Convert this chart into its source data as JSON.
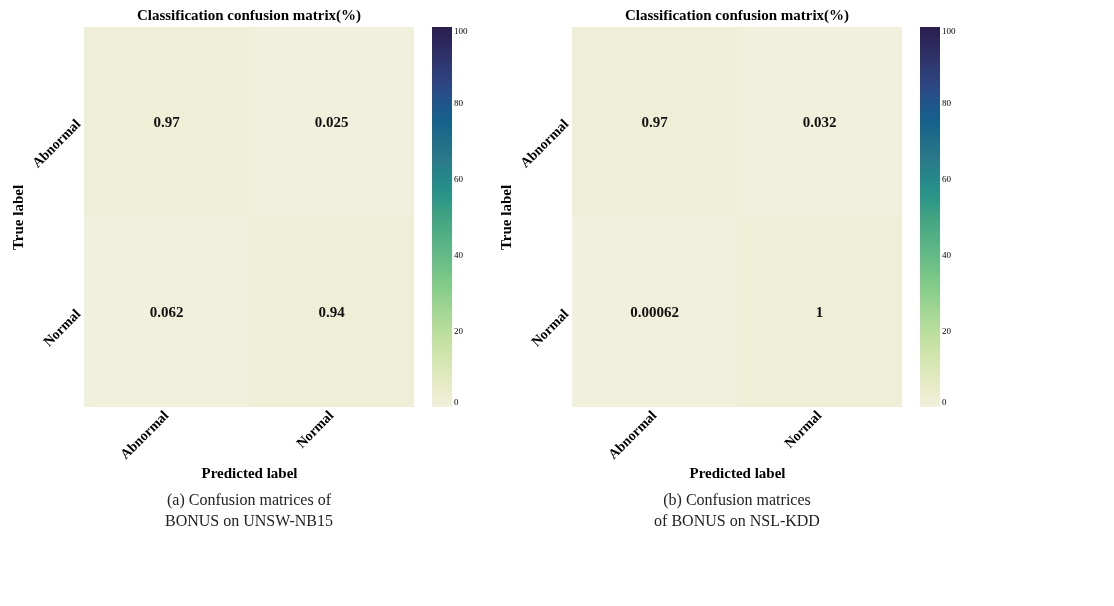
{
  "chart_data": [
    {
      "type": "heatmap",
      "title": "Classification confusion matrix(%)",
      "xlabel": "Predicted label",
      "ylabel": "True label",
      "categories": [
        "Abnormal",
        "Normal"
      ],
      "y_categories": [
        "Abnormal",
        "Normal"
      ],
      "cells": [
        [
          0.97,
          0.025
        ],
        [
          0.062,
          0.94
        ]
      ],
      "clim": [
        0,
        100
      ],
      "cticks": [
        0,
        20,
        40,
        60,
        80,
        100
      ],
      "data_labels": true,
      "annotations": [
        "(a) Confusion matrices of",
        "BONUS on UNSW-NB15"
      ]
    },
    {
      "type": "heatmap",
      "title": "Classification confusion matrix(%)",
      "xlabel": "Predicted label",
      "ylabel": "True label",
      "categories": [
        "Abnormal",
        "Normal"
      ],
      "y_categories": [
        "Abnormal",
        "Normal"
      ],
      "cells": [
        [
          0.97,
          0.032
        ],
        [
          0.00062,
          1
        ]
      ],
      "clim": [
        0,
        100
      ],
      "cticks": [
        0,
        20,
        40,
        60,
        80,
        100
      ],
      "data_labels": true,
      "annotations": [
        "(b) Confusion matrices",
        "of BONUS on NSL-KDD"
      ]
    }
  ]
}
